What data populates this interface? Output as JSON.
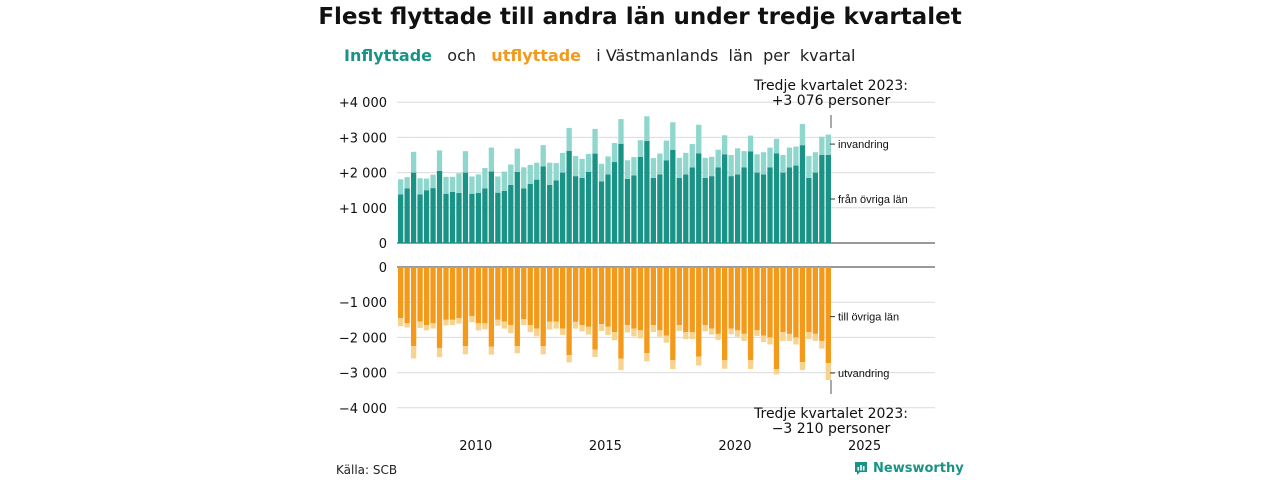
{
  "title": "Flest flyttade till andra län under tredje kvartalet",
  "subtitle": {
    "in_word": "Inflyttade",
    "and_word": "och",
    "out_word": "utflyttade",
    "rest": "i Västmanlands  län  per  kvartal"
  },
  "source": "Källa: SCB",
  "brand": "Newsworthy",
  "colors": {
    "in_dark": "#1a9387",
    "in_light": "#8fd6cd",
    "out_dark": "#f49a1b",
    "out_light": "#f8d28f"
  },
  "chart_data": {
    "type": "bar",
    "x_range": [
      2007,
      2023.75
    ],
    "x_ticks": [
      "2010",
      "2015",
      "2020",
      "2025"
    ],
    "y_top_ticks": [
      "+4 000",
      "+3 000",
      "+2 000",
      "+1 000",
      "0"
    ],
    "y_bottom_ticks": [
      "0",
      "−1 000",
      "−2 000",
      "−3 000",
      "−4 000"
    ],
    "ylim_top": [
      0,
      4000
    ],
    "ylim_bottom": [
      -4000,
      0
    ],
    "series_labels": {
      "invandring": "invandring",
      "fran_ovriga_lan": "från övriga län",
      "till_ovriga_lan": "till övriga län",
      "utvandring": "utvandring"
    },
    "annotation_top": [
      "Tredje kvartalet 2023:",
      "+3 076 personer"
    ],
    "annotation_bottom": [
      "Tredje kvartalet 2023:",
      "−3 210 personer"
    ],
    "quarters": [
      "2007Q1",
      "2007Q2",
      "2007Q3",
      "2007Q4",
      "2008Q1",
      "2008Q2",
      "2008Q3",
      "2008Q4",
      "2009Q1",
      "2009Q2",
      "2009Q3",
      "2009Q4",
      "2010Q1",
      "2010Q2",
      "2010Q3",
      "2010Q4",
      "2011Q1",
      "2011Q2",
      "2011Q3",
      "2011Q4",
      "2012Q1",
      "2012Q2",
      "2012Q3",
      "2012Q4",
      "2013Q1",
      "2013Q2",
      "2013Q3",
      "2013Q4",
      "2014Q1",
      "2014Q2",
      "2014Q3",
      "2014Q4",
      "2015Q1",
      "2015Q2",
      "2015Q3",
      "2015Q4",
      "2016Q1",
      "2016Q2",
      "2016Q3",
      "2016Q4",
      "2017Q1",
      "2017Q2",
      "2017Q3",
      "2017Q4",
      "2018Q1",
      "2018Q2",
      "2018Q3",
      "2018Q4",
      "2019Q1",
      "2019Q2",
      "2019Q3",
      "2019Q4",
      "2020Q1",
      "2020Q2",
      "2020Q3",
      "2020Q4",
      "2021Q1",
      "2021Q2",
      "2021Q3",
      "2021Q4",
      "2022Q1",
      "2022Q2",
      "2022Q3",
      "2022Q4",
      "2023Q1",
      "2023Q2",
      "2023Q3"
    ],
    "series": [
      {
        "name": "från övriga län",
        "values": [
          1380,
          1550,
          2000,
          1380,
          1500,
          1560,
          2050,
          1400,
          1450,
          1420,
          2000,
          1400,
          1420,
          1550,
          2030,
          1430,
          1480,
          1650,
          2020,
          1550,
          1680,
          1800,
          2180,
          1650,
          1780,
          2000,
          2620,
          1900,
          1850,
          2020,
          2540,
          1750,
          1950,
          2300,
          2820,
          1820,
          1920,
          2450,
          2900,
          1850,
          1950,
          2350,
          2650,
          1850,
          1950,
          2150,
          2550,
          1850,
          1900,
          2150,
          2520,
          1900,
          1950,
          2150,
          2600,
          2000,
          1950,
          2150,
          2550,
          2000,
          2150,
          2200,
          2780,
          1850,
          2000,
          2500,
          2500
        ]
      },
      {
        "name": "invandring",
        "values": [
          430,
          320,
          590,
          460,
          330,
          380,
          580,
          480,
          430,
          560,
          610,
          490,
          530,
          580,
          680,
          460,
          550,
          580,
          660,
          600,
          540,
          480,
          600,
          630,
          490,
          560,
          650,
          570,
          540,
          510,
          700,
          500,
          510,
          540,
          700,
          530,
          520,
          470,
          700,
          560,
          590,
          560,
          780,
          570,
          610,
          660,
          810,
          570,
          550,
          500,
          540,
          600,
          740,
          460,
          450,
          520,
          630,
          560,
          410,
          500,
          560,
          540,
          600,
          620,
          580,
          520,
          580
        ]
      },
      {
        "name": "till övriga län",
        "values": [
          -1450,
          -1600,
          -2250,
          -1550,
          -1650,
          -1600,
          -2300,
          -1500,
          -1500,
          -1450,
          -2250,
          -1400,
          -1600,
          -1600,
          -2260,
          -1500,
          -1550,
          -1650,
          -2250,
          -1480,
          -1650,
          -1750,
          -2250,
          -1550,
          -1550,
          -1750,
          -2500,
          -1560,
          -1650,
          -1700,
          -2350,
          -1620,
          -1700,
          -1850,
          -2600,
          -1650,
          -1750,
          -1800,
          -2450,
          -1650,
          -1800,
          -1950,
          -2650,
          -1650,
          -1850,
          -1850,
          -2550,
          -1650,
          -1750,
          -1900,
          -2650,
          -1750,
          -1800,
          -1900,
          -2650,
          -1800,
          -1950,
          -2000,
          -2900,
          -1850,
          -1900,
          -2000,
          -2700,
          -1850,
          -1900,
          -2100,
          -2730
        ]
      },
      {
        "name": "utvandring",
        "values": [
          -230,
          -120,
          -350,
          -180,
          -150,
          -150,
          -260,
          -160,
          -150,
          -160,
          -230,
          -170,
          -200,
          -170,
          -230,
          -170,
          -200,
          -230,
          -200,
          -170,
          -200,
          -220,
          -230,
          -230,
          -200,
          -180,
          -210,
          -190,
          -180,
          -220,
          -210,
          -200,
          -230,
          -230,
          -330,
          -210,
          -220,
          -230,
          -230,
          -200,
          -180,
          -200,
          -250,
          -170,
          -200,
          -200,
          -250,
          -180,
          -170,
          -170,
          -240,
          -160,
          -180,
          -200,
          -250,
          -160,
          -180,
          -200,
          -150,
          -250,
          -200,
          -200,
          -230,
          -200,
          -200,
          -220,
          -480
        ]
      }
    ]
  }
}
